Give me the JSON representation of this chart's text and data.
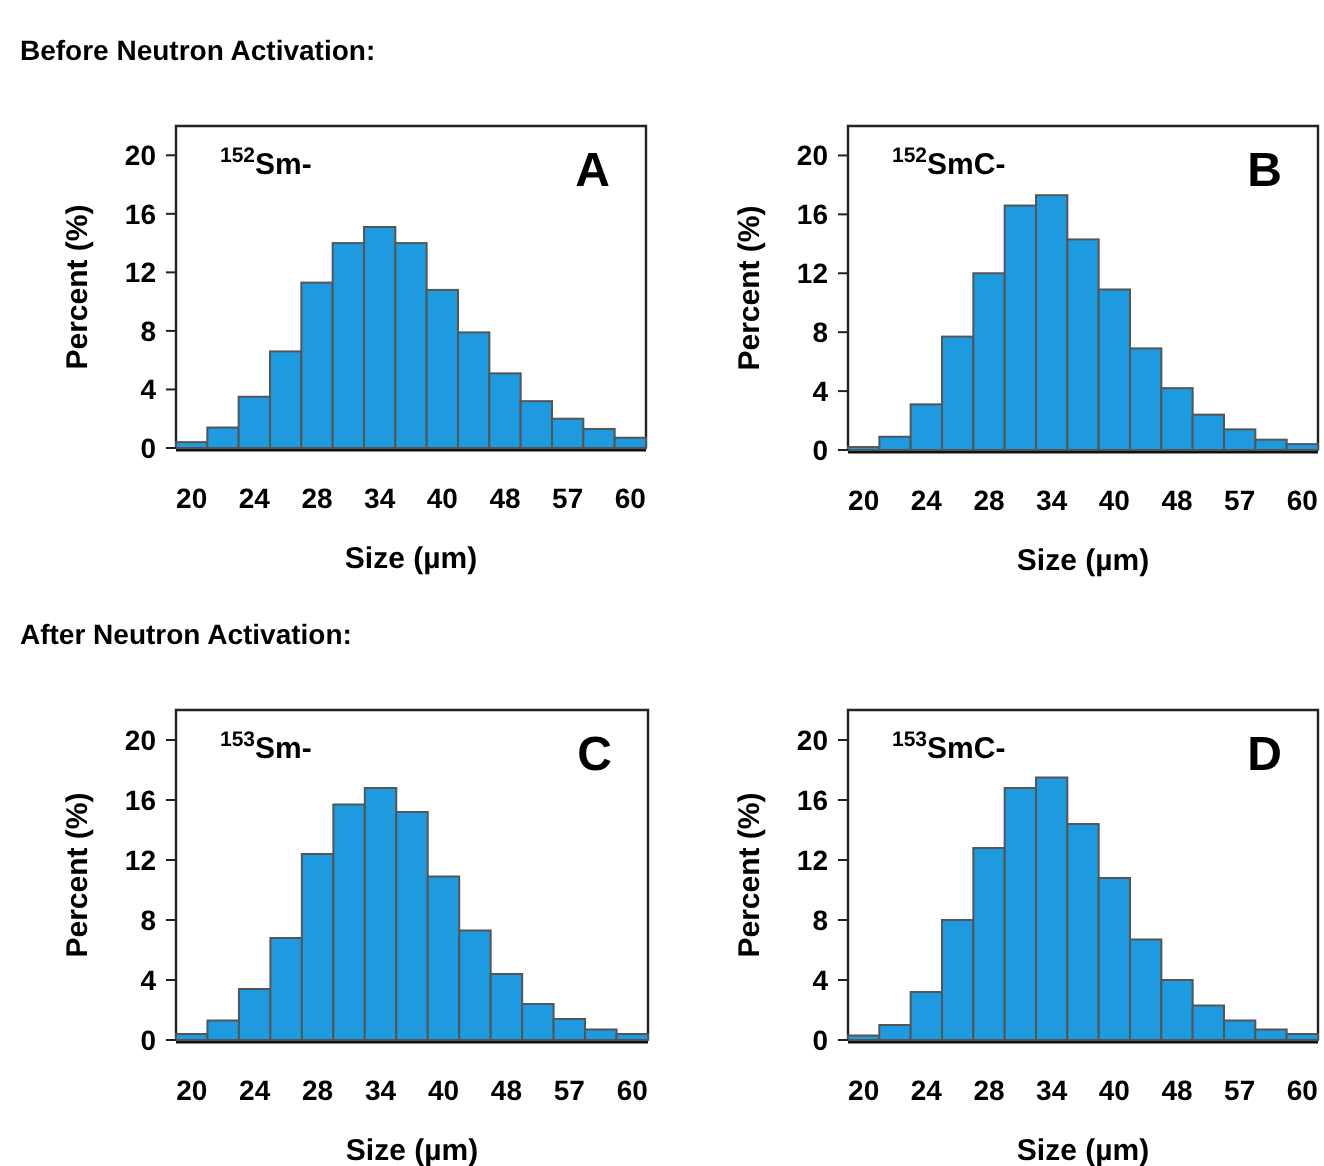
{
  "chart_data": [
    {
      "type": "bar",
      "title": "Before Neutron Activation:",
      "xlabel": "Size (µm)",
      "ylabel": "Percent (%)",
      "annotations": [
        "$^{152}$Sm-",
        "A"
      ],
      "categories": [
        "20",
        null,
        "24",
        null,
        "28",
        null,
        "34",
        null,
        "40",
        null,
        "48",
        null,
        "57",
        null,
        "60"
      ],
      "values": [
        0.4,
        1.4,
        3.5,
        6.6,
        11.3,
        14.0,
        15.1,
        14.0,
        10.8,
        7.9,
        5.1,
        3.2,
        2.0,
        1.3,
        0.7
      ],
      "color": "#1e9be0",
      "ylim": [
        0,
        22
      ],
      "yticks": [
        0,
        4,
        8,
        12,
        16,
        20
      ]
    },
    {
      "type": "bar",
      "xlabel": "Size (µm)",
      "ylabel": "Percent (%)",
      "annotations": [
        "$^{152}$SmC-",
        "B"
      ],
      "categories": [
        "20",
        null,
        "24",
        null,
        "28",
        null,
        "34",
        null,
        "40",
        null,
        "48",
        null,
        "57",
        null,
        "60"
      ],
      "values": [
        0.2,
        0.9,
        3.1,
        7.7,
        12.0,
        16.6,
        17.3,
        14.3,
        10.9,
        6.9,
        4.2,
        2.4,
        1.4,
        0.7,
        0.4
      ],
      "color": "#1e9be0",
      "ylim": [
        0,
        22
      ],
      "yticks": [
        0,
        4,
        8,
        12,
        16,
        20
      ]
    },
    {
      "type": "bar",
      "title": "After Neutron Activation:",
      "xlabel": "Size (µm)",
      "ylabel": "Percent (%)",
      "annotations": [
        "$^{153}$Sm-",
        "C"
      ],
      "categories": [
        "20",
        null,
        "24",
        null,
        "28",
        null,
        "34",
        null,
        "40",
        null,
        "48",
        null,
        "57",
        null,
        "60"
      ],
      "values": [
        0.4,
        1.3,
        3.4,
        6.8,
        12.4,
        15.7,
        16.8,
        15.2,
        10.9,
        7.3,
        4.4,
        2.4,
        1.4,
        0.7,
        0.4
      ],
      "color": "#1e9be0",
      "ylim": [
        0,
        22
      ],
      "yticks": [
        0,
        4,
        8,
        12,
        16,
        20
      ]
    },
    {
      "type": "bar",
      "xlabel": "Size (µm)",
      "ylabel": "Percent (%)",
      "annotations": [
        "$^{153}$SmC-",
        "D"
      ],
      "categories": [
        "20",
        null,
        "24",
        null,
        "28",
        null,
        "34",
        null,
        "40",
        null,
        "48",
        null,
        "57",
        null,
        "60"
      ],
      "values": [
        0.3,
        1.0,
        3.2,
        8.0,
        12.8,
        16.8,
        17.5,
        14.4,
        10.8,
        6.7,
        4.0,
        2.3,
        1.3,
        0.7,
        0.4
      ],
      "color": "#1e9be0",
      "ylim": [
        0,
        22
      ],
      "yticks": [
        0,
        4,
        8,
        12,
        16,
        20
      ]
    }
  ]
}
